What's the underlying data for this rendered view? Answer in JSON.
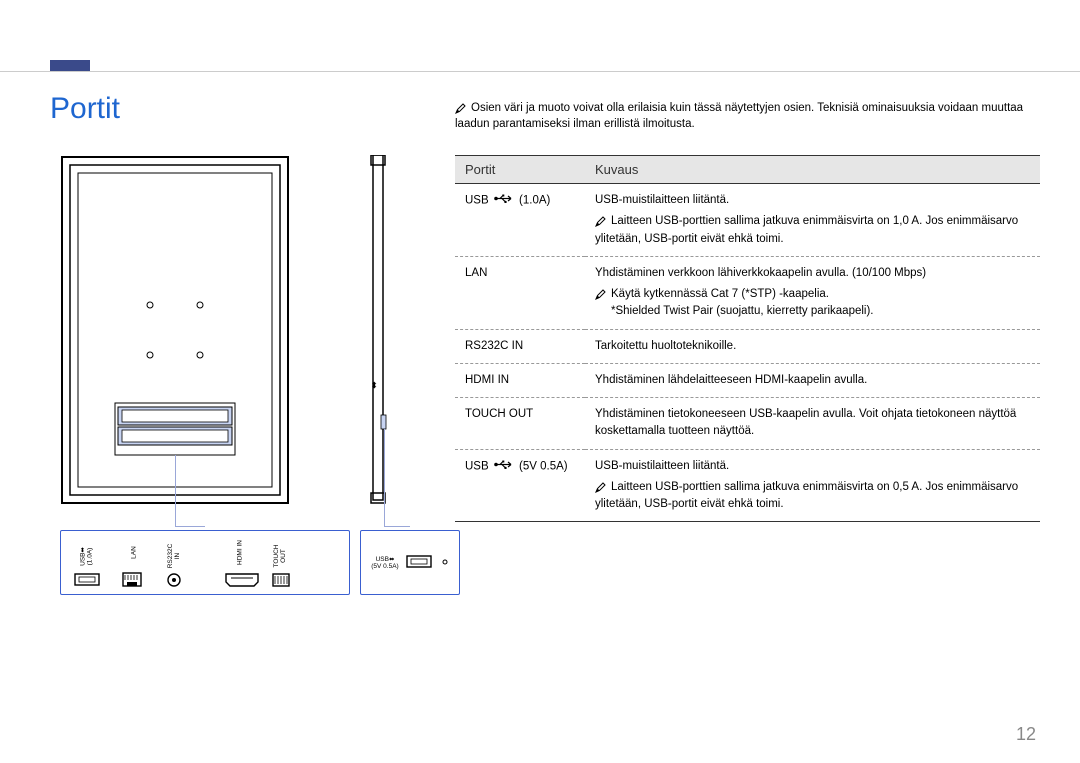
{
  "title": "Portit",
  "topNote": "Osien väri ja muoto voivat olla erilaisia kuin tässä näytettyjen osien. Teknisiä ominaisuuksia voidaan muuttaa laadun parantamiseksi ilman erillistä ilmoitusta.",
  "table": {
    "headers": {
      "col1": "Portit",
      "col2": "Kuvaus"
    },
    "rows": [
      {
        "port": "USB",
        "port_suffix": "(1.0A)",
        "has_usb_icon": true,
        "desc": "USB-muistilaitteen liitäntä.",
        "note": "Laitteen USB-porttien sallima jatkuva enimmäisvirta on 1,0 A. Jos enimmäisarvo ylitetään, USB-portit eivät ehkä toimi."
      },
      {
        "port": "LAN",
        "desc": "Yhdistäminen verkkoon lähiverkkokaapelin avulla. (10/100 Mbps)",
        "note": "Käytä kytkennässä Cat 7 (*STP) -kaapelia.",
        "note_line2": "*Shielded Twist Pair (suojattu, kierretty parikaapeli)."
      },
      {
        "port": "RS232C IN",
        "desc": "Tarkoitettu huoltoteknikoille."
      },
      {
        "port": "HDMI IN",
        "desc": "Yhdistäminen lähdelaitteeseen HDMI-kaapelin avulla."
      },
      {
        "port": "TOUCH OUT",
        "desc": "Yhdistäminen tietokoneeseen USB-kaapelin avulla. Voit ohjata tietokoneen näyttöä koskettamalla tuotteen näyttöä."
      },
      {
        "port": "USB",
        "port_suffix": "(5V 0.5A)",
        "has_usb_icon": true,
        "desc": "USB-muistilaitteen liitäntä.",
        "note": "Laitteen USB-porttien sallima jatkuva enimmäisvirta on 0,5 A. Jos enimmäisarvo ylitetään, USB-portit eivät ehkä toimi."
      }
    ]
  },
  "panel1_labels": [
    "USB⬌\n(1.0A)",
    "LAN",
    "RS232C\nIN",
    "HDMI IN",
    "TOUCH\nOUT"
  ],
  "panel2_label": "USB⬌\n(5V 0.5A)",
  "pageNumber": "12",
  "colors": {
    "accent_title": "#1e66d0",
    "panel_border": "#3a5fd0",
    "connector": "#9aa7d8",
    "header_tab": "#3a4a8a",
    "th_bg": "#e6e6e6",
    "page_num": "#888888"
  }
}
